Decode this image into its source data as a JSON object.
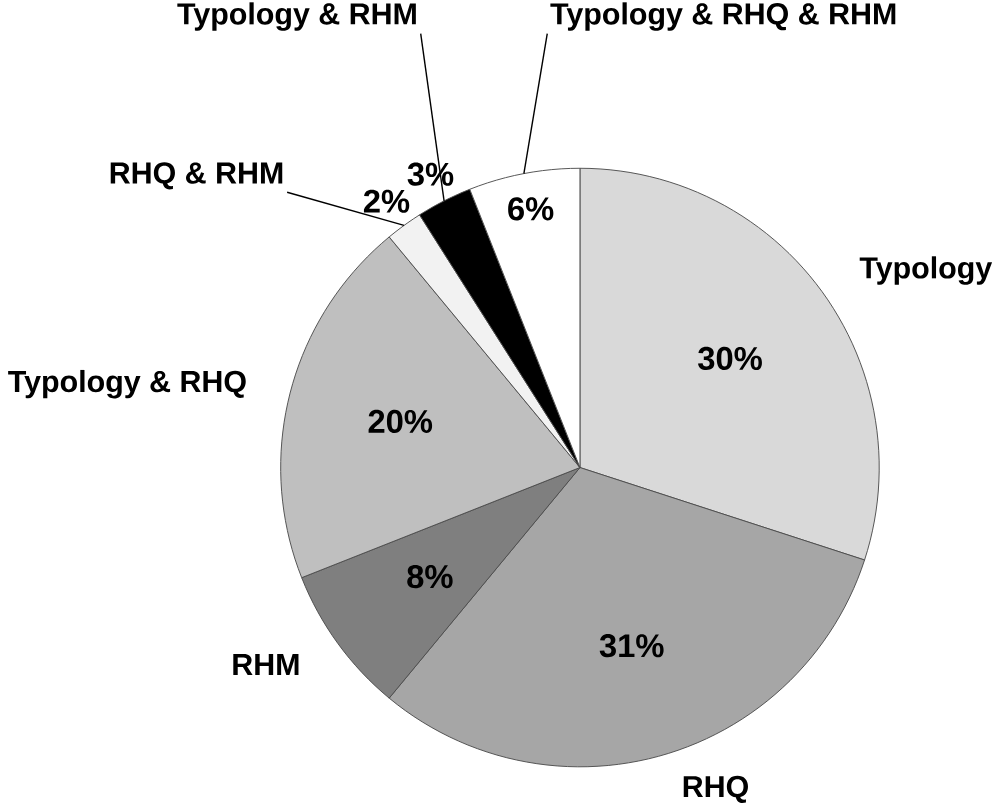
{
  "chart_data": {
    "type": "pie",
    "categories": [
      "Typology",
      "RHQ",
      "RHM",
      "Typology & RHQ",
      "RHQ & RHM",
      "Typology & RHM",
      "Typology & RHQ & RHM"
    ],
    "values": [
      30,
      31,
      8,
      20,
      2,
      3,
      6
    ],
    "value_labels": [
      "30%",
      "31%",
      "8%",
      "20%",
      "2%",
      "3%",
      "6%"
    ],
    "colors": [
      "#d9d9d9",
      "#a6a6a6",
      "#7f7f7f",
      "#bfbfbf",
      "#f2f2f2",
      "#000000",
      "#ffffff"
    ]
  }
}
